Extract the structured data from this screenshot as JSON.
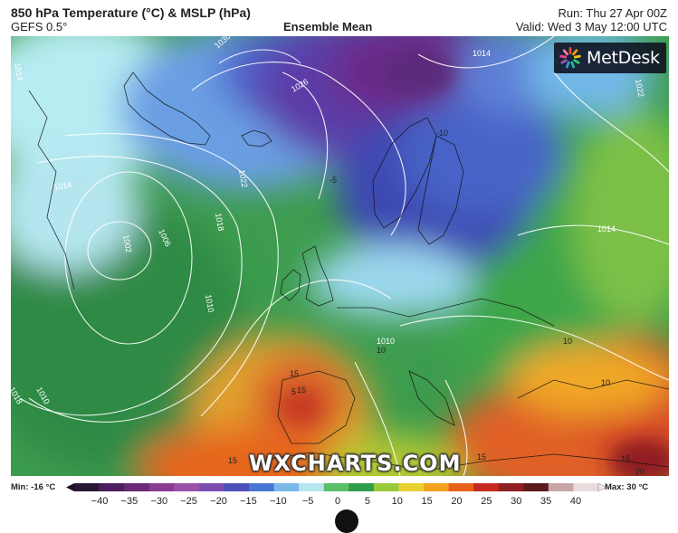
{
  "header": {
    "title": "850 hPa Temperature (°C) & MSLP (hPa)",
    "model": "GEFS 0.5°",
    "subtitle": "Ensemble Mean",
    "run": "Run: Thu 27 Apr 00Z",
    "valid": "Valid: Wed 3 May 12:00 UTC"
  },
  "logo": {
    "text": "MetDesk",
    "icon": "metdesk-burst-icon"
  },
  "watermark": "WXCHARTS.COM",
  "map": {
    "isobars": [
      {
        "label": "1030"
      },
      {
        "label": "1026"
      },
      {
        "label": "1022"
      },
      {
        "label": "1018"
      },
      {
        "label": "1014"
      },
      {
        "label": "1010"
      },
      {
        "label": "1006"
      },
      {
        "label": "1002"
      },
      {
        "label": "1014"
      },
      {
        "label": "1010"
      },
      {
        "label": "1022"
      },
      {
        "label": "1018"
      },
      {
        "label": "1014"
      },
      {
        "label": "1014"
      },
      {
        "label": "1010"
      }
    ],
    "temp_labels": [
      "15",
      "15",
      "15",
      "10",
      "10",
      "15",
      "15",
      "20",
      "10",
      "-5",
      "5",
      "-10"
    ]
  },
  "legend": {
    "min_label": "Min: -16 °C",
    "max_label": "Max: 30 °C",
    "ticks": [
      "−40",
      "−35",
      "−30",
      "−25",
      "−20",
      "−15",
      "−10",
      "−5",
      "0",
      "5",
      "10",
      "15",
      "20",
      "25",
      "30",
      "35",
      "40"
    ],
    "colors": [
      "#2a1735",
      "#4b1f5c",
      "#6a2a78",
      "#8a3c93",
      "#9a52a8",
      "#7a4fb0",
      "#4b4fb8",
      "#4777d3",
      "#7ab8ea",
      "#b5e6f0",
      "#5cc06b",
      "#2f9e4b",
      "#97c93c",
      "#e8d130",
      "#f2a21f",
      "#e8601e",
      "#c72a20",
      "#8f1f22",
      "#5c1a1a",
      "#c9a5a5",
      "#e8dcdc"
    ]
  }
}
